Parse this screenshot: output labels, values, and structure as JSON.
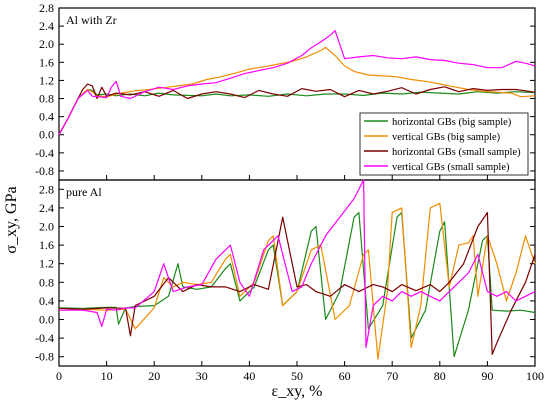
{
  "chart_data": [
    {
      "type": "line",
      "title": "Al with Zr",
      "xlabel": "",
      "ylabel": "",
      "xlim": [
        0,
        100
      ],
      "ylim": [
        -1.0,
        2.8
      ],
      "yticks": [
        -0.8,
        -0.4,
        0.0,
        0.4,
        0.8,
        1.2,
        1.6,
        2.0,
        2.4,
        2.8
      ],
      "ytick_labels": [
        "-0.8",
        "-0.4",
        "0.0",
        "0.4",
        "0.8",
        "1.2",
        "1.6",
        "2.0",
        "2.4",
        "2.8"
      ],
      "grid": false,
      "legend_position": "bottom-right",
      "series": [
        {
          "name": "horizontal GBs (big sample)",
          "color": "#1a8a1a",
          "x": [
            0,
            2,
            4,
            6,
            7,
            8,
            10,
            12,
            15,
            18,
            21,
            24,
            27,
            30,
            33,
            36,
            40,
            44,
            48,
            52,
            56,
            60,
            64,
            68,
            72,
            76,
            80,
            84,
            88,
            92,
            96,
            100
          ],
          "y": [
            0.0,
            0.38,
            0.8,
            1.0,
            0.98,
            0.88,
            0.9,
            0.86,
            0.9,
            0.86,
            0.92,
            0.88,
            0.87,
            0.86,
            0.9,
            0.86,
            0.88,
            0.85,
            0.9,
            0.86,
            0.9,
            0.9,
            0.87,
            0.92,
            0.9,
            0.94,
            0.92,
            0.9,
            0.95,
            0.92,
            0.95,
            0.93
          ]
        },
        {
          "name": "vertical GBs (big sample)",
          "color": "#f28c00",
          "x": [
            0,
            2,
            4,
            6,
            7,
            8,
            10,
            13,
            16,
            19,
            22,
            25,
            28,
            31,
            34,
            37,
            40,
            43,
            46,
            49,
            52,
            55,
            56,
            58,
            60,
            62,
            65,
            68,
            71,
            74,
            77,
            80,
            83,
            86,
            89,
            92,
            95,
            97,
            100
          ],
          "y": [
            0.0,
            0.38,
            0.8,
            1.0,
            0.95,
            0.86,
            0.84,
            0.92,
            0.97,
            1.0,
            1.04,
            1.08,
            1.12,
            1.22,
            1.28,
            1.36,
            1.45,
            1.5,
            1.56,
            1.62,
            1.72,
            1.86,
            1.93,
            1.75,
            1.52,
            1.4,
            1.32,
            1.3,
            1.28,
            1.22,
            1.18,
            1.12,
            1.06,
            1.0,
            0.96,
            0.94,
            0.92,
            0.84,
            0.86
          ]
        },
        {
          "name": "horizontal GBs (small sample)",
          "color": "#7a0000",
          "x": [
            0,
            2,
            4,
            5,
            6,
            7,
            8,
            9,
            10,
            12,
            15,
            18,
            21,
            24,
            27,
            30,
            33,
            36,
            39,
            42,
            45,
            48,
            51,
            54,
            57,
            60,
            63,
            66,
            69,
            72,
            75,
            78,
            81,
            84,
            87,
            90,
            93,
            96,
            100
          ],
          "y": [
            0.0,
            0.38,
            0.8,
            1.0,
            1.12,
            1.08,
            0.8,
            1.05,
            0.85,
            0.92,
            0.88,
            0.95,
            0.85,
            0.98,
            0.8,
            0.9,
            0.95,
            0.9,
            0.82,
            0.98,
            0.9,
            0.85,
            1.02,
            0.96,
            1.0,
            0.84,
            0.98,
            0.9,
            0.96,
            1.04,
            0.9,
            1.0,
            1.06,
            0.95,
            1.02,
            0.98,
            1.0,
            1.0,
            0.94
          ]
        },
        {
          "name": "vertical GBs (small sample)",
          "color": "#ff00ff",
          "x": [
            0,
            2,
            4,
            6,
            7,
            8,
            10,
            11,
            12,
            13,
            15,
            18,
            21,
            24,
            27,
            30,
            33,
            36,
            39,
            42,
            45,
            48,
            51,
            53,
            55,
            57,
            58,
            60,
            63,
            66,
            69,
            72,
            75,
            78,
            81,
            84,
            87,
            90,
            93,
            96,
            98,
            100
          ],
          "y": [
            0.0,
            0.38,
            0.8,
            0.98,
            0.85,
            0.84,
            0.82,
            1.05,
            1.18,
            0.85,
            0.8,
            0.95,
            1.05,
            1.0,
            1.08,
            1.12,
            1.15,
            1.25,
            1.35,
            1.42,
            1.48,
            1.58,
            1.75,
            1.92,
            2.05,
            2.2,
            2.3,
            1.68,
            1.72,
            1.75,
            1.7,
            1.68,
            1.72,
            1.66,
            1.64,
            1.58,
            1.55,
            1.48,
            1.48,
            1.62,
            1.58,
            1.52
          ]
        }
      ]
    },
    {
      "type": "line",
      "title": "pure Al",
      "xlabel": "ε_xy, %",
      "ylabel": "σ_xy, GPa",
      "xlim": [
        0,
        100
      ],
      "ylim": [
        -1.0,
        3.0
      ],
      "xticks": [
        0,
        10,
        20,
        30,
        40,
        50,
        60,
        70,
        80,
        90,
        100
      ],
      "xtick_labels": [
        "0",
        "10",
        "20",
        "30",
        "40",
        "50",
        "60",
        "70",
        "80",
        "90",
        "100"
      ],
      "yticks": [
        -0.8,
        -0.4,
        0.0,
        0.4,
        0.8,
        1.2,
        1.6,
        2.0,
        2.4,
        2.8
      ],
      "ytick_labels": [
        "-0.8",
        "-0.4",
        "0.0",
        "0.4",
        "0.8",
        "1.2",
        "1.6",
        "2.0",
        "2.4",
        "2.8"
      ],
      "grid": false,
      "series": [
        {
          "name": "horizontal GBs (big sample)",
          "color": "#1a8a1a",
          "x": [
            0,
            5,
            10,
            12,
            12.5,
            14,
            16,
            20,
            23,
            25,
            26,
            29,
            32,
            35,
            36,
            38,
            41,
            44,
            45,
            47,
            50,
            53,
            54,
            56,
            59,
            62,
            63,
            65,
            68,
            71,
            72,
            74,
            77,
            80,
            81,
            83,
            86,
            89,
            90,
            91,
            94,
            97,
            100
          ],
          "y": [
            0.25,
            0.24,
            0.26,
            0.26,
            -0.1,
            0.25,
            0.28,
            0.3,
            0.5,
            1.2,
            0.7,
            0.65,
            0.7,
            1.1,
            1.2,
            0.4,
            0.7,
            1.5,
            1.6,
            0.3,
            0.6,
            1.9,
            2.0,
            0.0,
            0.6,
            2.2,
            2.3,
            -0.2,
            0.3,
            2.2,
            2.3,
            -0.4,
            0.2,
            1.9,
            2.1,
            -0.8,
            0.2,
            1.7,
            1.8,
            0.2,
            0.18,
            0.2,
            0.15
          ]
        },
        {
          "name": "vertical GBs (big sample)",
          "color": "#f28c00",
          "x": [
            0,
            5,
            10,
            14,
            16,
            20,
            22,
            24,
            26,
            29,
            32,
            35,
            36,
            38,
            41,
            44,
            45,
            47,
            50,
            53,
            55,
            58,
            61,
            64,
            65,
            67,
            69,
            70,
            72,
            74,
            76,
            78,
            80,
            82,
            84,
            86,
            87,
            88,
            90,
            92,
            94,
            96,
            98,
            100
          ],
          "y": [
            0.2,
            0.22,
            0.2,
            0.22,
            -0.2,
            0.25,
            0.9,
            0.7,
            0.8,
            0.75,
            0.8,
            1.3,
            1.4,
            0.5,
            0.8,
            1.7,
            1.8,
            0.3,
            0.6,
            1.5,
            1.6,
            0.0,
            0.3,
            1.4,
            1.5,
            -0.85,
            0.6,
            2.3,
            2.4,
            -0.6,
            0.3,
            2.4,
            2.5,
            0.7,
            1.6,
            1.65,
            1.8,
            0.5,
            1.8,
            1.2,
            0.4,
            1.0,
            1.8,
            1.2
          ]
        },
        {
          "name": "horizontal GBs (small sample)",
          "color": "#7a0000",
          "x": [
            0,
            5,
            10,
            14,
            15,
            16,
            20,
            23,
            26,
            29,
            32,
            35,
            38,
            41,
            44,
            47,
            50,
            52,
            54,
            57,
            60,
            63,
            66,
            68,
            70,
            72,
            75,
            78,
            80,
            82,
            85,
            88,
            90,
            91,
            92,
            95,
            98,
            100
          ],
          "y": [
            0.24,
            0.22,
            0.25,
            0.24,
            -0.35,
            0.3,
            0.5,
            0.9,
            0.6,
            0.75,
            0.7,
            0.7,
            0.6,
            0.75,
            0.65,
            2.2,
            0.7,
            0.75,
            0.6,
            0.5,
            0.75,
            0.6,
            0.75,
            0.7,
            0.6,
            0.75,
            0.62,
            0.75,
            0.6,
            0.8,
            1.2,
            2.0,
            2.3,
            -0.75,
            -0.5,
            0.2,
            0.8,
            1.4
          ]
        },
        {
          "name": "vertical GBs (small sample)",
          "color": "#ff00ff",
          "x": [
            0,
            5,
            8,
            9,
            10,
            12,
            14,
            16,
            20,
            22,
            24,
            27,
            30,
            33,
            36,
            38,
            40,
            43,
            46,
            49,
            51,
            53,
            56,
            59,
            62,
            64,
            64.5,
            66,
            68,
            70,
            72,
            74,
            76,
            78,
            80,
            82,
            84,
            86,
            88,
            90,
            92,
            94,
            96,
            98,
            100
          ],
          "y": [
            0.2,
            0.2,
            0.15,
            -0.15,
            0.22,
            0.2,
            0.25,
            0.25,
            0.6,
            1.2,
            0.6,
            0.7,
            0.75,
            1.3,
            1.6,
            0.8,
            0.5,
            1.5,
            1.8,
            0.6,
            0.7,
            1.2,
            1.8,
            2.2,
            2.6,
            3.0,
            -0.6,
            0.3,
            0.5,
            0.4,
            0.6,
            0.5,
            0.6,
            0.5,
            0.4,
            0.6,
            0.8,
            1.0,
            1.4,
            0.6,
            0.5,
            0.6,
            0.4,
            0.5,
            0.6
          ]
        }
      ]
    }
  ]
}
